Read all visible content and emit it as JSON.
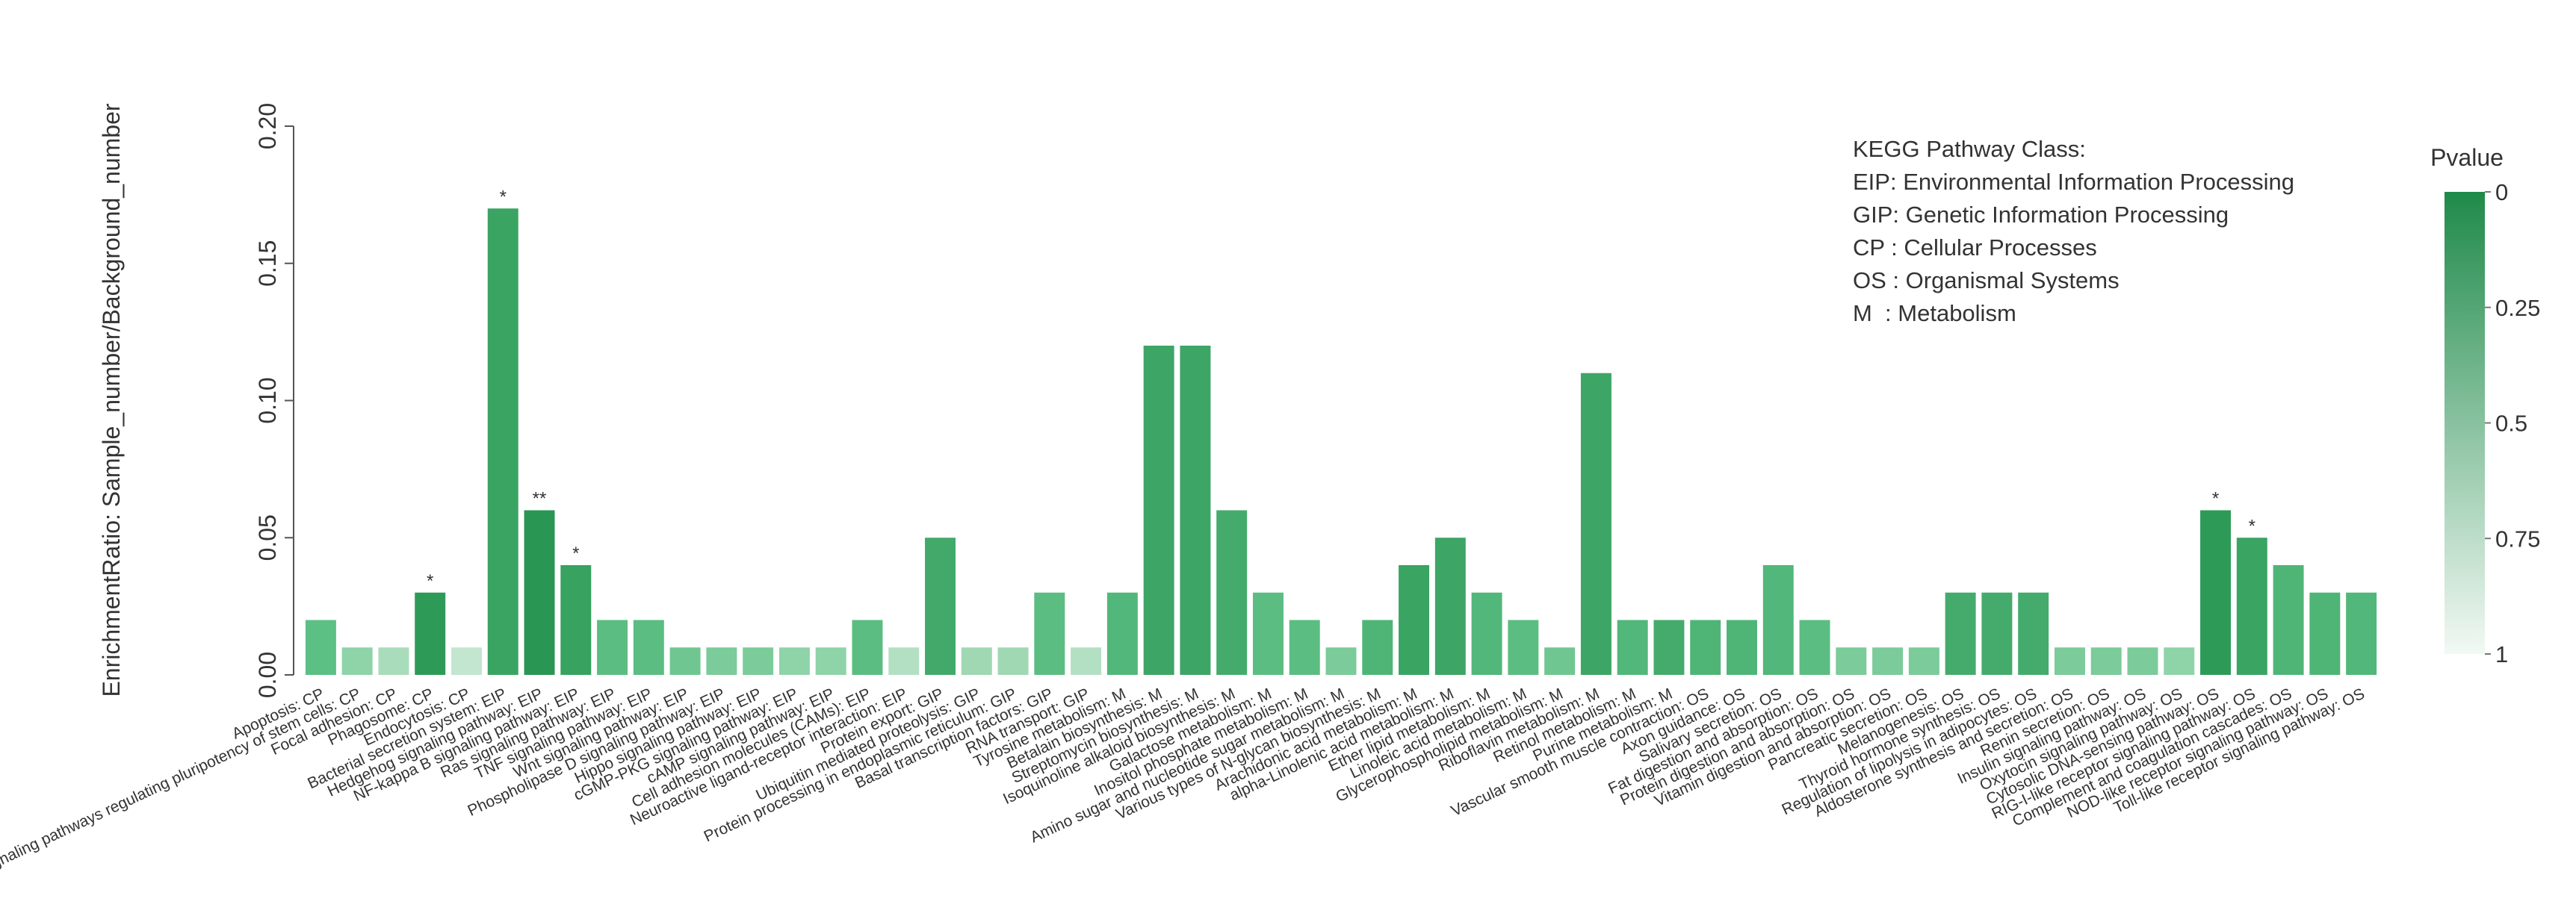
{
  "chart_data": {
    "type": "bar",
    "y_label": "EnrichmentRatio: Sample_number/Background_number",
    "categories": [
      "Apoptosis: CP",
      "Signaling pathways regulating pluripotency of stem cells: CP",
      "Focal adhesion: CP",
      "Phagosome: CP",
      "Endocytosis: CP",
      "Bacterial secretion system: EIP",
      "Hedgehog signaling pathway: EIP",
      "NF-kappa B signaling pathway: EIP",
      "Ras signaling pathway: EIP",
      "TNF signaling pathway: EIP",
      "Wnt signaling pathway: EIP",
      "Phospholipase D signaling pathway: EIP",
      "Hippo signaling pathway: EIP",
      "cGMP-PKG signaling pathway: EIP",
      "cAMP signaling pathway: EIP",
      "Cell adhesion molecules (CAMs): EIP",
      "Neuroactive ligand-receptor interaction: EIP",
      "Protein export: GIP",
      "Ubiquitin mediated proteolysis: GIP",
      "Protein processing in endoplasmic reticulum: GIP",
      "Basal transcription factors: GIP",
      "RNA transport: GIP",
      "Tyrosine metabolism: M",
      "Betalain biosynthesis: M",
      "Streptomycin biosynthesis: M",
      "Isoquinoline alkaloid biosynthesis: M",
      "Galactose metabolism: M",
      "Inositol phosphate metabolism: M",
      "Amino sugar and nucleotide sugar metabolism: M",
      "Various types of N-glycan biosynthesis: M",
      "Arachidonic acid metabolism: M",
      "alpha-Linolenic acid metabolism: M",
      "Ether lipid metabolism: M",
      "Linoleic acid metabolism: M",
      "Glycerophospholipid metabolism: M",
      "Riboflavin metabolism: M",
      "Retinol metabolism: M",
      "Purine metabolism: M",
      "Vascular smooth muscle contraction: OS",
      "Axon guidance: OS",
      "Salivary secretion: OS",
      "Fat digestion and absorption: OS",
      "Protein digestion and absorption: OS",
      "Vitamin digestion and absorption: OS",
      "Pancreatic secretion: OS",
      "Melanogenesis: OS",
      "Thyroid hormone synthesis: OS",
      "Regulation of lipolysis in adipocytes: OS",
      "Aldosterone synthesis and secretion: OS",
      "Renin secretion: OS",
      "Insulin signaling pathway: OS",
      "Oxytocin signaling pathway: OS",
      "Cytosolic DNA-sensing pathway: OS",
      "RIG-I-like receptor signaling pathway: OS",
      "Complement and coagulation cascades: OS",
      "NOD-like receptor signaling pathway: OS",
      "Toll-like receptor signaling pathway: OS"
    ],
    "values": [
      0.02,
      0.01,
      0.01,
      0.03,
      0.01,
      0.17,
      0.06,
      0.04,
      0.02,
      0.02,
      0.01,
      0.01,
      0.01,
      0.01,
      0.01,
      0.02,
      0.01,
      0.05,
      0.01,
      0.01,
      0.03,
      0.01,
      0.03,
      0.12,
      0.12,
      0.06,
      0.03,
      0.02,
      0.01,
      0.02,
      0.04,
      0.05,
      0.03,
      0.02,
      0.01,
      0.11,
      0.02,
      0.02,
      0.02,
      0.02,
      0.04,
      0.02,
      0.01,
      0.01,
      0.01,
      0.03,
      0.03,
      0.03,
      0.01,
      0.01,
      0.01,
      0.01,
      0.06,
      0.05,
      0.04,
      0.03,
      0.03
    ],
    "colors": [
      "#5cbf84",
      "#8fd3a8",
      "#a9dcbb",
      "#2e9a58",
      "#c2e6cf",
      "#3aa463",
      "#2a9654",
      "#38a261",
      "#5bbd82",
      "#5bbd82",
      "#6fc691",
      "#7ccb9a",
      "#7ccb9a",
      "#8fd3a8",
      "#8fd3a8",
      "#5bbd82",
      "#b3e0c3",
      "#42a96a",
      "#9fd8b3",
      "#9fd8b3",
      "#5bbd82",
      "#b3e0c3",
      "#52b77a",
      "#3da566",
      "#3da566",
      "#45ab6c",
      "#5bbd82",
      "#5bbd82",
      "#7ccb9a",
      "#4fb577",
      "#3aa463",
      "#3da566",
      "#52b77a",
      "#5bbd82",
      "#6fc691",
      "#3da566",
      "#52b77a",
      "#45ab6c",
      "#4fb577",
      "#4fb577",
      "#52b77a",
      "#5bbd82",
      "#7ccb9a",
      "#7ccb9a",
      "#7ccb9a",
      "#45ab6c",
      "#45ab6c",
      "#45ab6c",
      "#7ccb9a",
      "#7ccb9a",
      "#7ccb9a",
      "#8fd3a8",
      "#2e9a58",
      "#3aa463",
      "#4fb577",
      "#4fb577",
      "#52b77a"
    ],
    "significance": [
      {
        "index": 3,
        "label": "*"
      },
      {
        "index": 5,
        "label": "*"
      },
      {
        "index": 6,
        "label": "**"
      },
      {
        "index": 7,
        "label": "*"
      },
      {
        "index": 52,
        "label": "*"
      },
      {
        "index": 53,
        "label": "*"
      }
    ],
    "ylim": [
      0,
      0.2
    ],
    "yticks": [
      {
        "value": 0,
        "label": "0.00"
      },
      {
        "value": 0.05,
        "label": "0.05"
      },
      {
        "value": 0.1,
        "label": "0.10"
      },
      {
        "value": 0.15,
        "label": "0.15"
      },
      {
        "value": 0.2,
        "label": "0.20"
      }
    ],
    "legend_text": [
      "KEGG Pathway Class:",
      "EIP: Environmental Information Processing",
      "GIP: Genetic Information Processing",
      "CP : Cellular Processes",
      "OS : Organismal Systems",
      "M  : Metabolism"
    ],
    "colorbar": {
      "title": "Pvalue",
      "lim": [
        0,
        1
      ],
      "ticks": [
        0,
        0.25,
        0.5,
        0.75,
        1
      ],
      "colors": [
        "#1f8a4a",
        "#f2f9f4"
      ]
    }
  }
}
